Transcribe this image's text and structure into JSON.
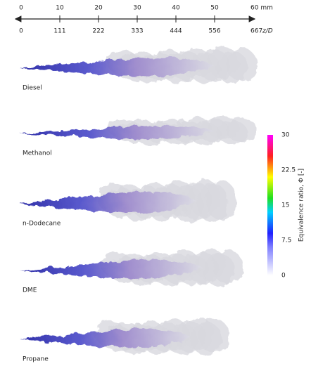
{
  "scale": {
    "mm_labels": [
      "0",
      "10",
      "20",
      "30",
      "40",
      "50",
      "60 mm"
    ],
    "zd_labels": [
      "0",
      "111",
      "222",
      "333",
      "444",
      "556",
      "667"
    ],
    "zd_unit": "z/D"
  },
  "sprays": [
    "Diesel",
    "Methanol",
    "n-Dodecane",
    "DME",
    "Propane"
  ],
  "colorbar": {
    "title": "Equivalence ratio, Φ [-]",
    "tick_labels": [
      "30",
      "22.5",
      "15",
      "7.5",
      "0"
    ]
  }
}
